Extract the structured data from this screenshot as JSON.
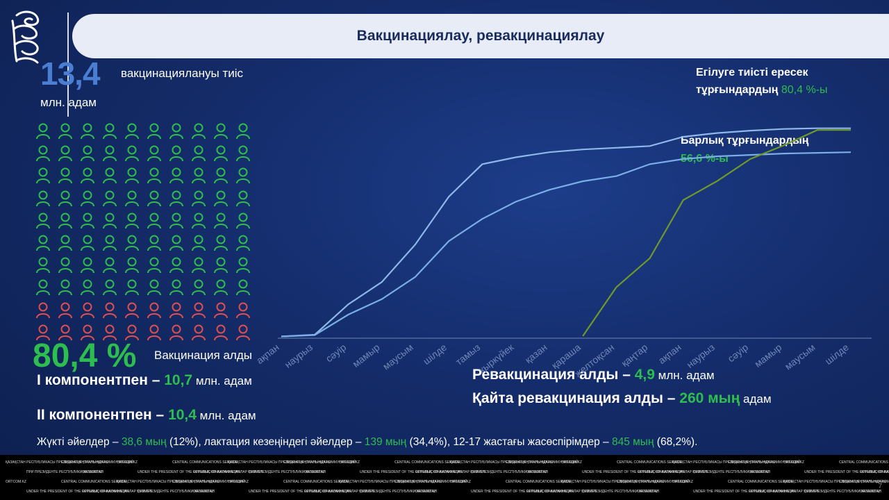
{
  "title": "Вакцинациялау, ревакцинациялау",
  "need": {
    "number": "13,4",
    "text": "вакцинациялануы тиіс",
    "unit": "млн. адам"
  },
  "icons": {
    "green_rows": 8,
    "red_rows": 2,
    "cols": 10,
    "green": "#2ebd4f",
    "red": "#e05050"
  },
  "vaccinated": {
    "percent": "80,4 %",
    "label": "Вакцинация алды"
  },
  "components": [
    {
      "label": "І компонентпен – ",
      "value": "10,7",
      "unit": " млн. адам"
    },
    {
      "label": "ІІ компонентпен – ",
      "value": "10,4",
      "unit": " млн. адам"
    }
  ],
  "revaccination": [
    {
      "label": "Ревакцинация алды – ",
      "value": "4,9",
      "unit": " млн. адам"
    },
    {
      "label": "Қайта ревакцинация алды – ",
      "value": "260 мың",
      "unit": " адам"
    }
  ],
  "note": {
    "p1": "Жүкті әйелдер – ",
    "v1": "38,6 мың",
    "p2": " (12%), лактация кезеңіндегі әйелдер – ",
    "v2": "139 мың",
    "p3": " (34,4%), 12-17 жастағы жасөспірімдер – ",
    "v3": "845 мың",
    "p4": " (68,2%)."
  },
  "legend_adult": {
    "line1": "Егілуге тиісті ересек",
    "line2": "тұрғындардың ",
    "value": "80,4 %-ы"
  },
  "legend_all": {
    "line1": "Барлық тұрғындардың",
    "value": "56,6 %-ы"
  },
  "chart_data": {
    "type": "line",
    "categories": [
      "ақпан",
      "наурыз",
      "сәуір",
      "мамыр",
      "маусым",
      "шілде",
      "тамыз",
      "қыркүйек",
      "қазан",
      "қараша",
      "желтоқсан",
      "қаңтар",
      "ақпан",
      "наурыз",
      "сәуір",
      "мамыр",
      "маусым",
      "шілде"
    ],
    "series": [
      {
        "name": "Егілуге тиісті ересек тұрғындардың",
        "color": "#8fb8ea",
        "values": [
          0.1,
          0.6,
          9.5,
          16,
          27,
          41,
          50.5,
          52.5,
          54,
          54.8,
          55.3,
          55.8,
          58.5,
          59.6,
          60.3,
          60.8,
          61,
          61
        ]
      },
      {
        "name": "Барлық тұрғындардың",
        "color": "#7aaee6",
        "values": [
          0.1,
          0.5,
          6.5,
          11,
          17.5,
          28,
          34.5,
          39.5,
          43,
          45.5,
          47,
          50.5,
          52,
          52.8,
          53.2,
          53.6,
          53.8,
          54
        ]
      },
      {
        "name": "Ревакцинация",
        "color": "#6f9a2a",
        "values": [
          null,
          null,
          null,
          null,
          null,
          null,
          null,
          null,
          null,
          0.2,
          14.5,
          23,
          40,
          45.5,
          52,
          56,
          60.5,
          60.5
        ]
      }
    ],
    "ylim": [
      0,
      65
    ]
  },
  "footer": {
    "rows": [
      [
        "ҚАЗАҚСТАН РЕСПУБЛИКАСЫ ПРЕЗИДЕНТІНІҢ ЖАНЫНДАҒЫ",
        "СЛУЖБА ЦЕНТРАЛЬНЫХ КОММУНИКАЦИЙ",
        "ORTCOM.KZ",
        "CENTRAL COMMUNICATIONS SERVICE"
      ],
      [
        "ОРТАЛЫҚ КОММУНИКАЦИЯЛАР ҚЫЗМЕТІ",
        "ПРИ ПРЕЗИДЕНТЕ РЕСПУБЛИКИ КАЗАХСТАН",
        "ORTCOM.KZ",
        "UNDER THE PRESIDENT OF THE REPUBLIC OF KAZAKHSTAN"
      ]
    ]
  },
  "page_number": "7"
}
